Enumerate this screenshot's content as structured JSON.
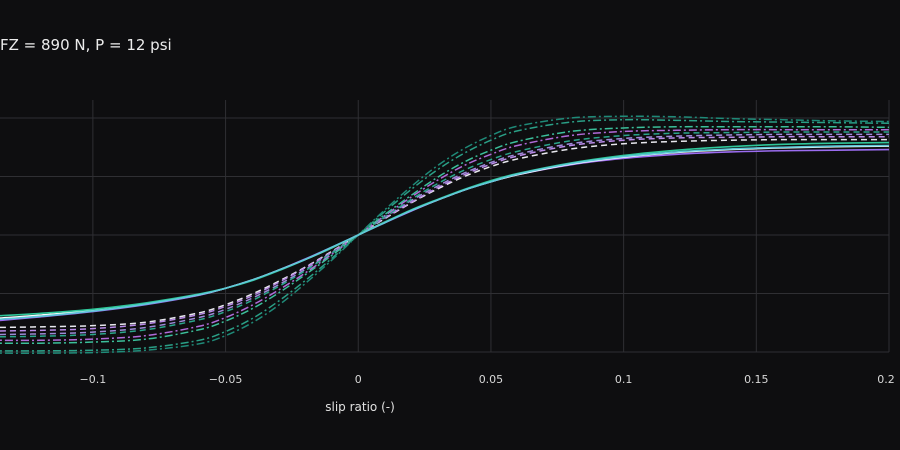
{
  "chart_data": {
    "type": "line",
    "title": "FZ = 890 N, P = 12 psi",
    "xlabel": "slip ratio (-)",
    "ylabel": "",
    "xlim": [
      -0.135,
      0.2
    ],
    "ylim": [
      -2.05,
      2.05
    ],
    "x_ticks": [
      -0.1,
      -0.05,
      0,
      0.05,
      0.1,
      0.15,
      0.2
    ],
    "x_tick_labels": [
      "−0.1",
      "−0.05",
      "0",
      "0.05",
      "0.1",
      "0.15",
      "0.2"
    ],
    "y_grid": [
      -2,
      -1,
      0,
      1,
      2
    ],
    "grid": true,
    "legend": "none",
    "x": [
      -0.135,
      -0.12,
      -0.1,
      -0.08,
      -0.06,
      -0.05,
      -0.04,
      -0.03,
      -0.02,
      -0.01,
      0,
      0.01,
      0.02,
      0.03,
      0.04,
      0.05,
      0.06,
      0.08,
      0.1,
      0.12,
      0.14,
      0.16,
      0.18,
      0.2
    ],
    "series": [
      {
        "color": "#9b6cf0",
        "dash": "solid",
        "values": [
          -1.46,
          -1.4,
          -1.31,
          -1.19,
          -1.03,
          -0.91,
          -0.77,
          -0.6,
          -0.41,
          -0.21,
          0.0,
          0.21,
          0.41,
          0.6,
          0.77,
          0.91,
          1.03,
          1.2,
          1.31,
          1.38,
          1.42,
          1.44,
          1.45,
          1.46
        ]
      },
      {
        "color": "#ffffff",
        "dash": "solid",
        "values": [
          -1.42,
          -1.37,
          -1.29,
          -1.17,
          -1.02,
          -0.91,
          -0.77,
          -0.6,
          -0.42,
          -0.22,
          0.0,
          0.22,
          0.42,
          0.6,
          0.77,
          0.91,
          1.03,
          1.21,
          1.33,
          1.41,
          1.46,
          1.49,
          1.51,
          1.52
        ]
      },
      {
        "color": "#2fc79a",
        "dash": "solid",
        "values": [
          -1.38,
          -1.34,
          -1.27,
          -1.16,
          -1.01,
          -0.91,
          -0.78,
          -0.61,
          -0.42,
          -0.22,
          0.0,
          0.22,
          0.43,
          0.61,
          0.78,
          0.93,
          1.05,
          1.23,
          1.36,
          1.45,
          1.51,
          1.55,
          1.57,
          1.58
        ]
      },
      {
        "color": "#5ec8d8",
        "dash": "solid",
        "values": [
          -1.44,
          -1.39,
          -1.3,
          -1.18,
          -1.02,
          -0.91,
          -0.77,
          -0.6,
          -0.42,
          -0.21,
          0.0,
          0.21,
          0.42,
          0.6,
          0.77,
          0.91,
          1.04,
          1.22,
          1.34,
          1.42,
          1.47,
          1.5,
          1.52,
          1.53
        ]
      },
      {
        "color": "#e8e8ee",
        "dash": "6,4",
        "values": [
          -1.58,
          -1.57,
          -1.55,
          -1.49,
          -1.33,
          -1.19,
          -1.01,
          -0.79,
          -0.55,
          -0.28,
          0.0,
          0.28,
          0.55,
          0.79,
          1.0,
          1.17,
          1.3,
          1.47,
          1.56,
          1.6,
          1.62,
          1.63,
          1.63,
          1.63
        ]
      },
      {
        "color": "#b98ae8",
        "dash": "6,4",
        "values": [
          -1.64,
          -1.63,
          -1.6,
          -1.52,
          -1.36,
          -1.22,
          -1.04,
          -0.81,
          -0.56,
          -0.29,
          0.0,
          0.29,
          0.56,
          0.81,
          1.03,
          1.21,
          1.35,
          1.53,
          1.62,
          1.66,
          1.67,
          1.68,
          1.68,
          1.68
        ]
      },
      {
        "color": "#9d8ad8",
        "dash": "6,4",
        "values": [
          -1.7,
          -1.69,
          -1.66,
          -1.58,
          -1.41,
          -1.27,
          -1.08,
          -0.85,
          -0.59,
          -0.3,
          0.0,
          0.3,
          0.59,
          0.84,
          1.06,
          1.24,
          1.38,
          1.56,
          1.65,
          1.69,
          1.71,
          1.72,
          1.72,
          1.72
        ]
      },
      {
        "color": "#2aa58a",
        "dash": "6,4",
        "values": [
          -1.74,
          -1.73,
          -1.7,
          -1.62,
          -1.45,
          -1.31,
          -1.12,
          -0.88,
          -0.61,
          -0.31,
          0.0,
          0.31,
          0.61,
          0.88,
          1.11,
          1.29,
          1.43,
          1.61,
          1.7,
          1.74,
          1.75,
          1.76,
          1.76,
          1.76
        ]
      },
      {
        "color": "#b06ad8",
        "dash": "2,3,8,3",
        "values": [
          -1.8,
          -1.8,
          -1.78,
          -1.72,
          -1.56,
          -1.41,
          -1.2,
          -0.94,
          -0.65,
          -0.33,
          0.0,
          0.33,
          0.65,
          0.94,
          1.19,
          1.38,
          1.53,
          1.7,
          1.77,
          1.79,
          1.8,
          1.8,
          1.8,
          1.8
        ]
      },
      {
        "color": "#3bbf9a",
        "dash": "2,3,8,3",
        "values": [
          -1.85,
          -1.85,
          -1.83,
          -1.78,
          -1.62,
          -1.47,
          -1.26,
          -0.99,
          -0.68,
          -0.35,
          0.0,
          0.35,
          0.68,
          0.99,
          1.25,
          1.45,
          1.6,
          1.77,
          1.83,
          1.85,
          1.85,
          1.85,
          1.85,
          1.84
        ]
      },
      {
        "color": "#2a9f86",
        "dash": "2,3,8,3",
        "values": [
          -1.98,
          -1.98,
          -1.97,
          -1.93,
          -1.8,
          -1.65,
          -1.43,
          -1.13,
          -0.78,
          -0.4,
          0.0,
          0.4,
          0.78,
          1.12,
          1.4,
          1.62,
          1.78,
          1.93,
          1.97,
          1.96,
          1.94,
          1.93,
          1.92,
          1.91
        ]
      },
      {
        "color": "#1f8a78",
        "dash": "2,3,8,3",
        "values": [
          -2.02,
          -2.02,
          -2.01,
          -1.97,
          -1.86,
          -1.72,
          -1.5,
          -1.2,
          -0.83,
          -0.43,
          0.0,
          0.43,
          0.83,
          1.19,
          1.48,
          1.7,
          1.86,
          2.0,
          2.03,
          2.02,
          1.99,
          1.97,
          1.95,
          1.94
        ]
      }
    ]
  }
}
